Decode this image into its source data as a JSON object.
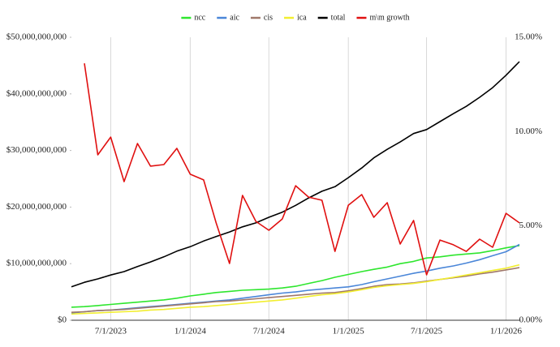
{
  "chart_data": {
    "type": "line",
    "x": [
      "4/1/2023",
      "5/1/2023",
      "6/1/2023",
      "7/1/2023",
      "8/1/2023",
      "9/1/2023",
      "10/1/2023",
      "11/1/2023",
      "12/1/2023",
      "1/1/2024",
      "2/1/2024",
      "3/1/2024",
      "4/1/2024",
      "5/1/2024",
      "6/1/2024",
      "7/1/2024",
      "8/1/2024",
      "9/1/2024",
      "10/1/2024",
      "11/1/2024",
      "12/1/2024",
      "1/1/2025",
      "2/1/2025",
      "3/1/2025",
      "4/1/2025",
      "5/1/2025",
      "6/1/2025",
      "7/1/2025",
      "8/1/2025",
      "9/1/2025",
      "10/1/2025",
      "11/1/2025",
      "12/1/2025",
      "1/1/2026",
      "2/1/2026"
    ],
    "xlim": [
      "4/1/2023",
      "2/1/2026"
    ],
    "xticks": [
      "7/1/2023",
      "1/1/2024",
      "7/1/2024",
      "1/1/2025",
      "7/1/2025",
      "1/1/2026"
    ],
    "ylim": [
      0,
      50000000000
    ],
    "yticks": [
      {
        "value": 0,
        "label": "$0"
      },
      {
        "value": 10000000000,
        "label": "$10,000,000,000"
      },
      {
        "value": 20000000000,
        "label": "$20,000,000,000"
      },
      {
        "value": 30000000000,
        "label": "$30,000,000,000"
      },
      {
        "value": 40000000000,
        "label": "$40,000,000,000"
      },
      {
        "value": 50000000000,
        "label": "$50,000,000,000"
      }
    ],
    "y2lim": [
      0,
      15
    ],
    "y2ticks": [
      {
        "value": 0,
        "label": "0.00%"
      },
      {
        "value": 5,
        "label": "5.00%"
      },
      {
        "value": 10,
        "label": "10.00%"
      },
      {
        "value": 15,
        "label": "15.00%"
      }
    ],
    "grid": true,
    "legend": "top",
    "series": [
      {
        "name": "ncc",
        "color": "#2ee62e",
        "values": [
          2300000000.0,
          2400000000.0,
          2600000000.0,
          2800000000.0,
          3000000000.0,
          3200000000.0,
          3400000000.0,
          3600000000.0,
          3900000000.0,
          4300000000.0,
          4600000000.0,
          4900000000.0,
          5100000000.0,
          5300000000.0,
          5400000000.0,
          5500000000.0,
          5700000000.0,
          6000000000.0,
          6500000000.0,
          7000000000.0,
          7600000000.0,
          8100000000.0,
          8600000000.0,
          9000000000.0,
          9400000000.0,
          10000000000.0,
          10400000000.0,
          11000000000.0,
          11200000000.0,
          11500000000.0,
          11700000000.0,
          11900000000.0,
          12300000000.0,
          12800000000.0,
          13200000000.0
        ]
      },
      {
        "name": "aic",
        "color": "#4a86d8",
        "values": [
          1300000000.0,
          1500000000.0,
          1700000000.0,
          1800000000.0,
          2000000000.0,
          2200000000.0,
          2400000000.0,
          2600000000.0,
          2800000000.0,
          3000000000.0,
          3200000000.0,
          3400000000.0,
          3600000000.0,
          3900000000.0,
          4200000000.0,
          4500000000.0,
          4800000000.0,
          5000000000.0,
          5300000000.0,
          5500000000.0,
          5700000000.0,
          5900000000.0,
          6300000000.0,
          6800000000.0,
          7300000000.0,
          7800000000.0,
          8300000000.0,
          8700000000.0,
          9200000000.0,
          9600000000.0,
          10100000000.0,
          10700000000.0,
          11400000000.0,
          12100000000.0,
          13400000000.0
        ]
      },
      {
        "name": "cis",
        "color": "#a0786a",
        "values": [
          1400000000.0,
          1500000000.0,
          1700000000.0,
          1800000000.0,
          1900000000.0,
          2100000000.0,
          2300000000.0,
          2500000000.0,
          2700000000.0,
          2900000000.0,
          3100000000.0,
          3300000000.0,
          3400000000.0,
          3600000000.0,
          3800000000.0,
          4000000000.0,
          4200000000.0,
          4400000000.0,
          4600000000.0,
          4800000000.0,
          4900000000.0,
          5200000000.0,
          5600000000.0,
          6000000000.0,
          6300000000.0,
          6400000000.0,
          6600000000.0,
          6900000000.0,
          7200000000.0,
          7500000000.0,
          7800000000.0,
          8200000000.0,
          8500000000.0,
          8900000000.0,
          9300000000.0
        ]
      },
      {
        "name": "ica",
        "color": "#f2ee30",
        "values": [
          1100000000.0,
          1200000000.0,
          1300000000.0,
          1400000000.0,
          1500000000.0,
          1600000000.0,
          1800000000.0,
          1900000000.0,
          2100000000.0,
          2300000000.0,
          2400000000.0,
          2600000000.0,
          2800000000.0,
          3000000000.0,
          3200000000.0,
          3400000000.0,
          3600000000.0,
          3900000000.0,
          4200000000.0,
          4500000000.0,
          4700000000.0,
          5000000000.0,
          5400000000.0,
          5800000000.0,
          6100000000.0,
          6300000000.0,
          6500000000.0,
          6800000000.0,
          7200000000.0,
          7600000000.0,
          8000000000.0,
          8400000000.0,
          8800000000.0,
          9200000000.0,
          9800000000.0
        ]
      },
      {
        "name": "total",
        "color": "#000000",
        "values": [
          5900000000.0,
          6700000000.0,
          7300000000.0,
          8000000000.0,
          8600000000.0,
          9500000000.0,
          10300000000.0,
          11200000000.0,
          12200000000.0,
          13000000000.0,
          14000000000.0,
          14800000000.0,
          15600000000.0,
          16500000000.0,
          17200000000.0,
          18200000000.0,
          19100000000.0,
          20300000000.0,
          21600000000.0,
          22800000000.0,
          23600000000.0,
          25200000000.0,
          26900000000.0,
          28700000000.0,
          30200000000.0,
          31500000000.0,
          33000000000.0,
          33700000000.0,
          35100000000.0,
          36500000000.0,
          37800000000.0,
          39400000000.0,
          41100000000.0,
          43300000000.0,
          45700000000.0
        ]
      },
      {
        "name": "m\\m growth",
        "color": "#e01010",
        "axis": "y2",
        "values": [
          null,
          13.62,
          8.77,
          9.71,
          7.35,
          9.37,
          8.17,
          8.25,
          9.11,
          7.74,
          7.44,
          5.16,
          3.01,
          6.62,
          5.24,
          4.77,
          5.37,
          7.13,
          6.53,
          6.36,
          3.65,
          6.1,
          6.66,
          5.46,
          6.23,
          4.04,
          5.29,
          2.41,
          4.25,
          4.0,
          3.65,
          4.3,
          3.87,
          5.67,
          5.16
        ]
      }
    ]
  }
}
